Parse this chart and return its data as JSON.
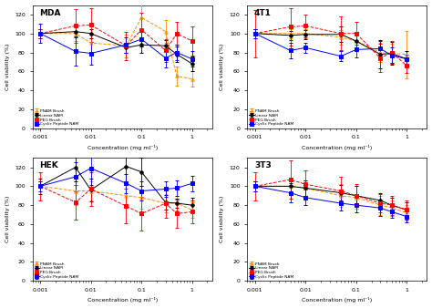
{
  "concentrations": [
    0.001,
    0.005,
    0.01,
    0.05,
    0.1,
    0.3,
    0.5,
    1.0
  ],
  "subplots": {
    "MDA": {
      "PNAM Brush": {
        "y": [
          100,
          100,
          90,
          87,
          117,
          102,
          55,
          52
        ],
        "yerr": [
          5,
          8,
          10,
          12,
          15,
          12,
          10,
          8
        ],
        "color": "#FF8C00",
        "marker": "^",
        "linestyle": "--"
      },
      "Linear NAM": {
        "y": [
          100,
          102,
          100,
          85,
          88,
          87,
          78,
          68
        ],
        "yerr": [
          5,
          5,
          5,
          5,
          8,
          6,
          8,
          8
        ],
        "color": "#000000",
        "marker": "o",
        "linestyle": "-"
      },
      "PEG Brush": {
        "y": [
          100,
          108,
          109,
          87,
          104,
          82,
          100,
          92
        ],
        "yerr": [
          5,
          18,
          18,
          15,
          18,
          12,
          12,
          15
        ],
        "color": "#FF0000",
        "marker": "s",
        "linestyle": "--"
      },
      "Cyclic Peptide NAM": {
        "y": [
          100,
          81,
          79,
          88,
          94,
          74,
          80,
          73
        ],
        "yerr": [
          10,
          15,
          12,
          8,
          8,
          10,
          8,
          8
        ],
        "color": "#0000FF",
        "marker": "s",
        "linestyle": "-"
      }
    },
    "4T1": {
      "PNAM Brush": {
        "y": [
          100,
          100,
          100,
          96,
          92,
          80,
          79,
          78
        ],
        "yerr": [
          5,
          5,
          5,
          8,
          10,
          10,
          10,
          25
        ],
        "color": "#FF8C00",
        "marker": "^",
        "linestyle": "--"
      },
      "Linear NAM": {
        "y": [
          100,
          98,
          99,
          99,
          92,
          78,
          79,
          73
        ],
        "yerr": [
          5,
          5,
          5,
          8,
          10,
          15,
          12,
          8
        ],
        "color": "#000000",
        "marker": "o",
        "linestyle": "-"
      },
      "PEG Brush": {
        "y": [
          100,
          107,
          108,
          100,
          100,
          74,
          80,
          66
        ],
        "yerr": [
          25,
          20,
          12,
          18,
          12,
          15,
          12,
          8
        ],
        "color": "#FF0000",
        "marker": "s",
        "linestyle": "--"
      },
      "Cyclic Peptide NAM": {
        "y": [
          100,
          82,
          85,
          76,
          83,
          84,
          77,
          73
        ],
        "yerr": [
          5,
          8,
          5,
          5,
          8,
          8,
          8,
          5
        ],
        "color": "#0000FF",
        "marker": "s",
        "linestyle": "-"
      }
    },
    "HEK": {
      "PNAM Brush": {
        "y": [
          100,
          95,
          95,
          90,
          88,
          82,
          82,
          75
        ],
        "yerr": [
          5,
          15,
          10,
          12,
          12,
          10,
          8,
          8
        ],
        "color": "#FF8C00",
        "marker": "^",
        "linestyle": "--"
      },
      "Linear NAM": {
        "y": [
          100,
          120,
          96,
          121,
          115,
          83,
          82,
          80
        ],
        "yerr": [
          8,
          15,
          12,
          18,
          15,
          8,
          5,
          8
        ],
        "color": "#000000",
        "marker": "o",
        "linestyle": "-"
      },
      "PEG Brush": {
        "y": [
          100,
          83,
          97,
          79,
          71,
          82,
          71,
          73
        ],
        "yerr": [
          15,
          18,
          18,
          18,
          18,
          15,
          15,
          12
        ],
        "color": "#FF0000",
        "marker": "s",
        "linestyle": "--"
      },
      "Cyclic Peptide NAM": {
        "y": [
          100,
          110,
          119,
          103,
          95,
          97,
          98,
          103
        ],
        "yerr": [
          5,
          15,
          18,
          10,
          10,
          8,
          8,
          8
        ],
        "color": "#0000FF",
        "marker": "s",
        "linestyle": "-"
      }
    },
    "3T3": {
      "PNAM Brush": {
        "y": [
          100,
          100,
          98,
          90,
          88,
          80,
          77,
          72
        ],
        "yerr": [
          5,
          8,
          8,
          12,
          12,
          10,
          8,
          8
        ],
        "color": "#FF8C00",
        "marker": "^",
        "linestyle": "--"
      },
      "Linear NAM": {
        "y": [
          100,
          100,
          98,
          93,
          90,
          85,
          80,
          75
        ],
        "yerr": [
          5,
          5,
          8,
          8,
          10,
          8,
          8,
          8
        ],
        "color": "#000000",
        "marker": "o",
        "linestyle": "-"
      },
      "PEG Brush": {
        "y": [
          100,
          107,
          102,
          95,
          90,
          82,
          80,
          75
        ],
        "yerr": [
          15,
          20,
          15,
          15,
          12,
          10,
          10,
          10
        ],
        "color": "#FF0000",
        "marker": "s",
        "linestyle": "--"
      },
      "Cyclic Peptide NAM": {
        "y": [
          100,
          93,
          88,
          82,
          80,
          77,
          73,
          68
        ],
        "yerr": [
          5,
          10,
          8,
          8,
          8,
          8,
          6,
          6
        ],
        "color": "#0000FF",
        "marker": "s",
        "linestyle": "-"
      }
    }
  },
  "ylabel": "Cell viability (%)",
  "xlabel": "Concentration (mg ml⁻¹)",
  "ylim": [
    0,
    130
  ],
  "yticks": [
    0,
    20,
    40,
    60,
    80,
    100,
    120
  ],
  "background_color": "#ffffff",
  "legend_entries": [
    "PNAM Brush",
    "Linear NAM",
    "PEG Brush",
    "Cyclic Peptide NAM"
  ],
  "subplot_order": [
    "MDA",
    "4T1",
    "HEK",
    "3T3"
  ],
  "legend_positions": [
    "lower left",
    "lower left",
    "lower left",
    "lower left"
  ]
}
